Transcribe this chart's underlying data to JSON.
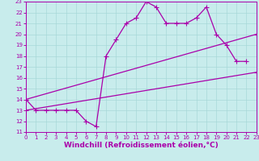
{
  "xlabel": "Windchill (Refroidissement éolien,°C)",
  "xlim": [
    0,
    23
  ],
  "ylim": [
    11,
    23
  ],
  "xticks": [
    0,
    1,
    2,
    3,
    4,
    5,
    6,
    7,
    8,
    9,
    10,
    11,
    12,
    13,
    14,
    15,
    16,
    17,
    18,
    19,
    20,
    21,
    22,
    23
  ],
  "yticks": [
    11,
    12,
    13,
    14,
    15,
    16,
    17,
    18,
    19,
    20,
    21,
    22,
    23
  ],
  "bg_color": "#c8ecec",
  "grid_color": "#a8d8d8",
  "line_color": "#aa00aa",
  "line1_x": [
    0,
    1,
    2,
    3,
    4,
    5,
    6,
    7,
    8,
    9,
    10,
    11,
    12,
    13,
    14,
    15,
    16,
    17,
    18,
    19,
    20,
    21,
    22
  ],
  "line1_y": [
    14,
    13,
    13,
    13,
    13,
    13,
    12,
    11.5,
    18,
    19.5,
    21,
    21.5,
    23,
    22.5,
    21,
    21,
    21,
    21.5,
    22.5,
    20,
    19,
    17.5,
    17.5
  ],
  "line2_x": [
    0,
    23
  ],
  "line2_y": [
    13,
    16.5
  ],
  "line3_x": [
    0,
    23
  ],
  "line3_y": [
    14,
    20
  ],
  "marker": "+",
  "markersize": 4,
  "markeredgewidth": 0.8,
  "linewidth": 0.9,
  "tick_fontsize": 5,
  "xlabel_fontsize": 6.5
}
